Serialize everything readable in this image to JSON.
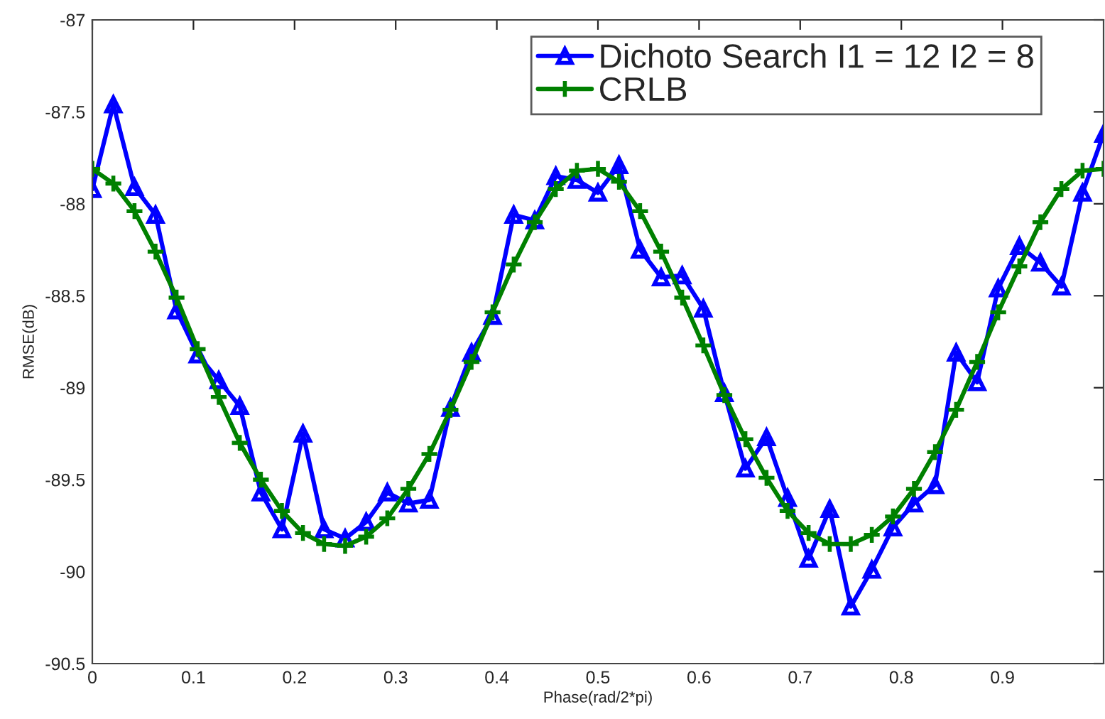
{
  "chart_data": {
    "type": "line",
    "xlabel": "Phase(rad/2*pi)",
    "ylabel": "RMSE(dB)",
    "x": [
      0,
      0.0208,
      0.0417,
      0.0625,
      0.0833,
      0.1042,
      0.125,
      0.1458,
      0.1667,
      0.1875,
      0.2083,
      0.2292,
      0.25,
      0.2708,
      0.2917,
      0.3125,
      0.3333,
      0.3542,
      0.375,
      0.3958,
      0.4167,
      0.4375,
      0.4583,
      0.4792,
      0.5,
      0.5208,
      0.5417,
      0.5625,
      0.5833,
      0.6042,
      0.625,
      0.6458,
      0.6667,
      0.6875,
      0.7083,
      0.7292,
      0.75,
      0.7708,
      0.7917,
      0.8125,
      0.8333,
      0.8542,
      0.875,
      0.8958,
      0.9167,
      0.9375,
      0.9583,
      0.9792,
      1
    ],
    "series": [
      {
        "name": "Dichoto Search I1 = 12 I2 = 8",
        "color": "#0000ff",
        "marker": "triangle",
        "values": [
          -87.92,
          -87.46,
          -87.91,
          -88.06,
          -88.58,
          -88.82,
          -88.96,
          -89.1,
          -89.57,
          -89.77,
          -89.25,
          -89.77,
          -89.82,
          -89.73,
          -89.57,
          -89.63,
          -89.61,
          -89.11,
          -88.81,
          -88.61,
          -88.06,
          -88.09,
          -87.85,
          -87.87,
          -87.94,
          -87.79,
          -88.25,
          -88.4,
          -88.39,
          -88.57,
          -89.03,
          -89.44,
          -89.27,
          -89.6,
          -89.93,
          -89.66,
          -90.19,
          -89.99,
          -89.76,
          -89.63,
          -89.53,
          -88.81,
          -88.97,
          -88.46,
          -88.23,
          -88.32,
          -88.45,
          -87.94,
          -87.62
        ]
      },
      {
        "name": "CRLB",
        "color": "#008000",
        "marker": "plus",
        "values": [
          -87.81,
          -87.89,
          -88.04,
          -88.26,
          -88.51,
          -88.79,
          -89.05,
          -89.3,
          -89.5,
          -89.67,
          -89.79,
          -89.85,
          -89.86,
          -89.81,
          -89.71,
          -89.55,
          -89.36,
          -89.12,
          -88.86,
          -88.59,
          -88.33,
          -88.1,
          -87.92,
          -87.82,
          -87.81,
          -87.88,
          -88.04,
          -88.26,
          -88.51,
          -88.77,
          -89.04,
          -89.28,
          -89.49,
          -89.67,
          -89.79,
          -89.85,
          -89.85,
          -89.8,
          -89.7,
          -89.55,
          -89.35,
          -89.12,
          -88.86,
          -88.59,
          -88.34,
          -88.1,
          -87.92,
          -87.82,
          -87.81
        ]
      }
    ],
    "xlim": [
      0,
      1
    ],
    "xticks": [
      0,
      0.1,
      0.2,
      0.3,
      0.4,
      0.5,
      0.6,
      0.7,
      0.8,
      0.9
    ],
    "ylim": [
      -90.5,
      -87
    ],
    "yticks": [
      -90.5,
      -90,
      -89.5,
      -89,
      -88.5,
      -88,
      -87.5,
      -87
    ],
    "grid": false,
    "legend": "top right",
    "line_style": "solid"
  }
}
